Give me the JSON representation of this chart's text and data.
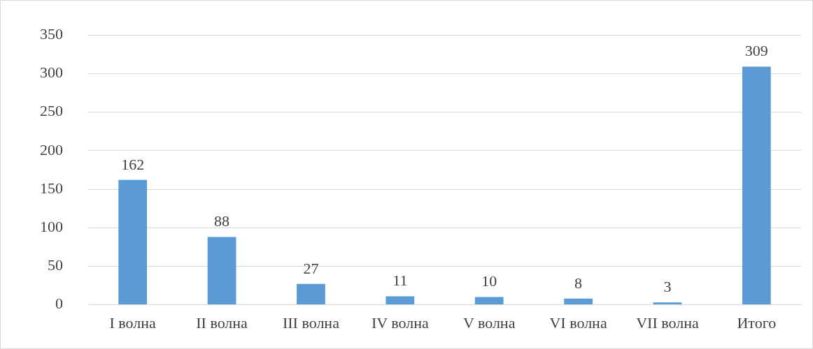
{
  "chart_data": {
    "type": "bar",
    "categories": [
      "I волна",
      "II волна",
      "III волна",
      "IV волна",
      "V волна",
      "VI волна",
      "VII волна",
      "Итого"
    ],
    "values": [
      162,
      88,
      27,
      11,
      10,
      8,
      3,
      309
    ],
    "color": "#5b9bd5",
    "ylim": [
      0,
      350
    ],
    "yticks": [
      0,
      50,
      100,
      150,
      200,
      250,
      300,
      350
    ],
    "grid": "y",
    "data_labels": true
  }
}
